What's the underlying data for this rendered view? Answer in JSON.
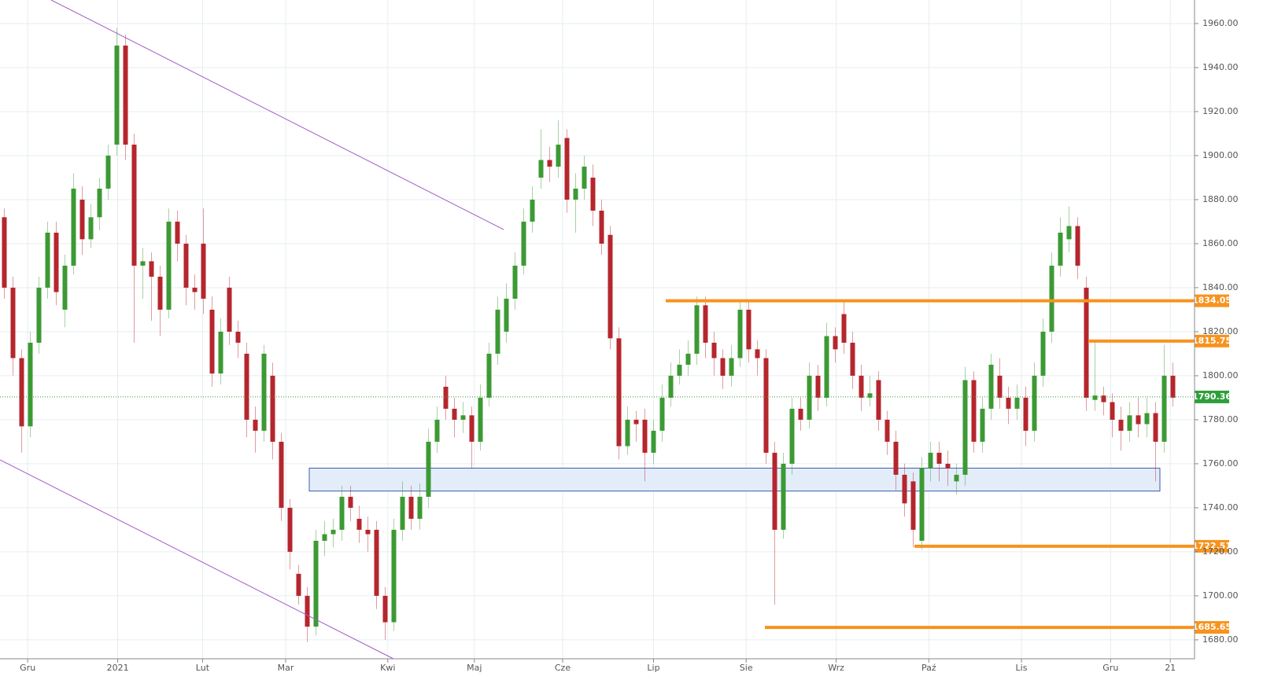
{
  "chart_data": {
    "type": "candlestick",
    "xticks": [
      {
        "value": 3.2,
        "label": "Gru"
      },
      {
        "value": 13.6,
        "label": "2021"
      },
      {
        "value": 23.4,
        "label": "Lut"
      },
      {
        "value": 33,
        "label": "Mar"
      },
      {
        "value": 44.8,
        "label": "Kwi"
      },
      {
        "value": 54.8,
        "label": "Maj"
      },
      {
        "value": 65,
        "label": "Cze"
      },
      {
        "value": 75.5,
        "label": "Lip"
      },
      {
        "value": 86.2,
        "label": "Sie"
      },
      {
        "value": 96.6,
        "label": "Wrz"
      },
      {
        "value": 107.3,
        "label": "Paź"
      },
      {
        "value": 118,
        "label": "Lis"
      },
      {
        "value": 128.3,
        "label": "Gru"
      },
      {
        "value": 135.2,
        "label": "21"
      }
    ],
    "xlim": [
      0,
      138
    ],
    "ylim": [
      1671.4,
      1970.7
    ],
    "yticks": [
      {
        "value": 1680,
        "label": "1680.00"
      },
      {
        "value": 1700,
        "label": "1700.00"
      },
      {
        "value": 1720,
        "label": "1720.00"
      },
      {
        "value": 1740,
        "label": "1740.00"
      },
      {
        "value": 1760,
        "label": "1760.00"
      },
      {
        "value": 1780,
        "label": "1780.00"
      },
      {
        "value": 1800,
        "label": "1800.00"
      },
      {
        "value": 1820,
        "label": "1820.00"
      },
      {
        "value": 1840,
        "label": "1840.00"
      },
      {
        "value": 1860,
        "label": "1860.00"
      },
      {
        "value": 1880,
        "label": "1880.00"
      },
      {
        "value": 1900,
        "label": "1900.00"
      },
      {
        "value": 1920,
        "label": "1920.00"
      },
      {
        "value": 1940,
        "label": "1940.00"
      },
      {
        "value": 1960,
        "label": "1960.00"
      }
    ],
    "grid": true,
    "up_color": "#3c9a34",
    "down_color": "#b5262d",
    "levels": [
      1834.05,
      1815.75,
      1722.51,
      1685.65
    ],
    "level_color": "#f7931e",
    "last_price": 1790.36,
    "last_color": "#2e9e3a",
    "zone": [
      1747.6,
      1758
    ],
    "candles": [
      [
        1872,
        1876,
        1835,
        1840
      ],
      [
        1840,
        1845,
        1800,
        1808
      ],
      [
        1808,
        1812,
        1765,
        1777
      ],
      [
        1777,
        1820,
        1772,
        1815
      ],
      [
        1815,
        1845,
        1810,
        1840
      ],
      [
        1840,
        1870,
        1835,
        1865
      ],
      [
        1865,
        1870,
        1832,
        1838
      ],
      [
        1830,
        1855,
        1822,
        1850
      ],
      [
        1850,
        1892,
        1846,
        1885
      ],
      [
        1880,
        1886,
        1855,
        1862
      ],
      [
        1862,
        1878,
        1858,
        1872
      ],
      [
        1872,
        1890,
        1866,
        1885
      ],
      [
        1885,
        1905,
        1880,
        1900
      ],
      [
        1905,
        1958,
        1900,
        1950
      ],
      [
        1950,
        1955,
        1898,
        1905
      ],
      [
        1905,
        1910,
        1815,
        1850
      ],
      [
        1850,
        1858,
        1835,
        1852
      ],
      [
        1852,
        1856,
        1825,
        1845
      ],
      [
        1845,
        1850,
        1818,
        1830
      ],
      [
        1830,
        1876,
        1826,
        1870
      ],
      [
        1870,
        1875,
        1852,
        1860
      ],
      [
        1860,
        1864,
        1832,
        1840
      ],
      [
        1840,
        1846,
        1830,
        1838
      ],
      [
        1860,
        1876,
        1828,
        1835
      ],
      [
        1830,
        1836,
        1795,
        1801
      ],
      [
        1801,
        1826,
        1796,
        1820
      ],
      [
        1840,
        1845,
        1814,
        1820
      ],
      [
        1820,
        1825,
        1808,
        1815
      ],
      [
        1810,
        1815,
        1772,
        1780
      ],
      [
        1780,
        1786,
        1765,
        1775
      ],
      [
        1775,
        1814,
        1770,
        1810
      ],
      [
        1800,
        1806,
        1762,
        1770
      ],
      [
        1770,
        1774,
        1734,
        1740
      ],
      [
        1740,
        1744,
        1712,
        1720
      ],
      [
        1710,
        1714,
        1696,
        1700
      ],
      [
        1700,
        1704,
        1679,
        1686
      ],
      [
        1686,
        1730,
        1682,
        1725
      ],
      [
        1725,
        1734,
        1718,
        1728
      ],
      [
        1728,
        1735,
        1722,
        1730
      ],
      [
        1730,
        1750,
        1725,
        1745
      ],
      [
        1745,
        1750,
        1734,
        1740
      ],
      [
        1735,
        1741,
        1724,
        1730
      ],
      [
        1730,
        1736,
        1720,
        1728
      ],
      [
        1730,
        1734,
        1694,
        1700
      ],
      [
        1700,
        1704,
        1680,
        1688
      ],
      [
        1688,
        1735,
        1684,
        1730
      ],
      [
        1730,
        1752,
        1725,
        1745
      ],
      [
        1745,
        1750,
        1730,
        1735
      ],
      [
        1735,
        1751,
        1730,
        1745
      ],
      [
        1745,
        1776,
        1740,
        1770
      ],
      [
        1770,
        1786,
        1765,
        1780
      ],
      [
        1795,
        1800,
        1780,
        1785
      ],
      [
        1785,
        1790,
        1772,
        1780
      ],
      [
        1780,
        1788,
        1774,
        1782
      ],
      [
        1782,
        1786,
        1758,
        1770
      ],
      [
        1770,
        1796,
        1766,
        1790
      ],
      [
        1790,
        1815,
        1786,
        1810
      ],
      [
        1810,
        1836,
        1805,
        1830
      ],
      [
        1820,
        1842,
        1815,
        1835
      ],
      [
        1835,
        1856,
        1830,
        1850
      ],
      [
        1850,
        1876,
        1846,
        1870
      ],
      [
        1870,
        1886,
        1865,
        1880
      ],
      [
        1890,
        1912,
        1885,
        1898
      ],
      [
        1898,
        1904,
        1888,
        1895
      ],
      [
        1895,
        1916,
        1890,
        1905
      ],
      [
        1908,
        1912,
        1874,
        1880
      ],
      [
        1880,
        1892,
        1865,
        1885
      ],
      [
        1885,
        1900,
        1880,
        1895
      ],
      [
        1890,
        1896,
        1868,
        1875
      ],
      [
        1875,
        1880,
        1855,
        1860
      ],
      [
        1864,
        1868,
        1812,
        1817
      ],
      [
        1817,
        1822,
        1762,
        1768
      ],
      [
        1768,
        1786,
        1764,
        1780
      ],
      [
        1780,
        1784,
        1770,
        1778
      ],
      [
        1780,
        1785,
        1752,
        1765
      ],
      [
        1765,
        1780,
        1760,
        1775
      ],
      [
        1775,
        1796,
        1770,
        1790
      ],
      [
        1790,
        1806,
        1786,
        1800
      ],
      [
        1800,
        1812,
        1796,
        1805
      ],
      [
        1805,
        1816,
        1800,
        1810
      ],
      [
        1810,
        1836,
        1805,
        1832
      ],
      [
        1832,
        1836,
        1808,
        1815
      ],
      [
        1815,
        1820,
        1800,
        1808
      ],
      [
        1808,
        1812,
        1794,
        1800
      ],
      [
        1800,
        1814,
        1795,
        1808
      ],
      [
        1808,
        1834,
        1804,
        1830
      ],
      [
        1830,
        1834,
        1806,
        1812
      ],
      [
        1812,
        1816,
        1800,
        1808
      ],
      [
        1808,
        1812,
        1760,
        1765
      ],
      [
        1765,
        1770,
        1696,
        1730
      ],
      [
        1730,
        1765,
        1726,
        1760
      ],
      [
        1760,
        1790,
        1755,
        1785
      ],
      [
        1785,
        1790,
        1775,
        1780
      ],
      [
        1780,
        1806,
        1776,
        1800
      ],
      [
        1800,
        1805,
        1784,
        1790
      ],
      [
        1790,
        1824,
        1786,
        1818
      ],
      [
        1818,
        1822,
        1806,
        1812
      ],
      [
        1828,
        1834,
        1810,
        1815
      ],
      [
        1815,
        1820,
        1794,
        1800
      ],
      [
        1800,
        1805,
        1784,
        1790
      ],
      [
        1790,
        1800,
        1786,
        1792
      ],
      [
        1798,
        1802,
        1775,
        1780
      ],
      [
        1780,
        1784,
        1764,
        1770
      ],
      [
        1770,
        1775,
        1748,
        1755
      ],
      [
        1755,
        1760,
        1736,
        1742
      ],
      [
        1752,
        1756,
        1722,
        1730
      ],
      [
        1725,
        1763,
        1721,
        1758
      ],
      [
        1758,
        1770,
        1752,
        1765
      ],
      [
        1765,
        1770,
        1752,
        1760
      ],
      [
        1760,
        1766,
        1750,
        1758
      ],
      [
        1752,
        1760,
        1746,
        1755
      ],
      [
        1755,
        1804,
        1750,
        1798
      ],
      [
        1798,
        1802,
        1765,
        1770
      ],
      [
        1770,
        1790,
        1765,
        1785
      ],
      [
        1785,
        1810,
        1780,
        1805
      ],
      [
        1800,
        1808,
        1785,
        1790
      ],
      [
        1790,
        1795,
        1778,
        1785
      ],
      [
        1785,
        1796,
        1780,
        1790
      ],
      [
        1790,
        1795,
        1768,
        1775
      ],
      [
        1775,
        1806,
        1770,
        1800
      ],
      [
        1800,
        1826,
        1795,
        1820
      ],
      [
        1820,
        1856,
        1815,
        1850
      ],
      [
        1850,
        1872,
        1845,
        1865
      ],
      [
        1862,
        1877,
        1856,
        1868
      ],
      [
        1868,
        1872,
        1844,
        1850
      ],
      [
        1840,
        1845,
        1784,
        1790
      ],
      [
        1789,
        1816,
        1784,
        1791
      ],
      [
        1791,
        1795,
        1782,
        1788
      ],
      [
        1788,
        1792,
        1772,
        1780
      ],
      [
        1780,
        1786,
        1766,
        1775
      ],
      [
        1775,
        1788,
        1770,
        1782
      ],
      [
        1782,
        1790,
        1772,
        1778
      ],
      [
        1778,
        1790,
        1772,
        1783
      ],
      [
        1783,
        1788,
        1752,
        1770
      ],
      [
        1770,
        1814,
        1765,
        1800
      ],
      [
        1800,
        1806,
        1786,
        1790
      ]
    ]
  }
}
